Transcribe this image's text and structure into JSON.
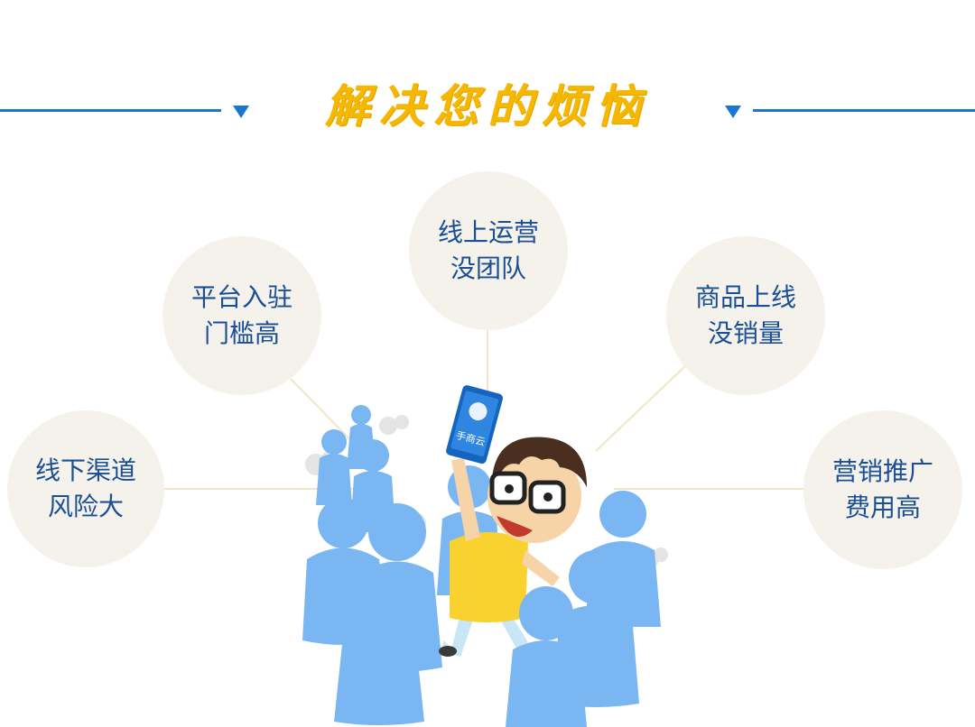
{
  "header": {
    "title": "解决您的烦恼"
  },
  "bubbles": [
    {
      "line1": "线下渠道",
      "line2": "风险大"
    },
    {
      "line1": "平台入驻",
      "line2": "门槛高"
    },
    {
      "line1": "线上运营",
      "line2": "没团队"
    },
    {
      "line1": "商品上线",
      "line2": "没销量"
    },
    {
      "line1": "营销推广",
      "line2": "费用高"
    }
  ],
  "illustration": {
    "phone_label": "手商云"
  },
  "colors": {
    "accent_blue": "#1976d2",
    "title_yellow": "#f5b700",
    "bubble_bg": "#f4f2ea",
    "bubble_text": "#1a4f96",
    "figure_blue": "#7ab6f2"
  }
}
